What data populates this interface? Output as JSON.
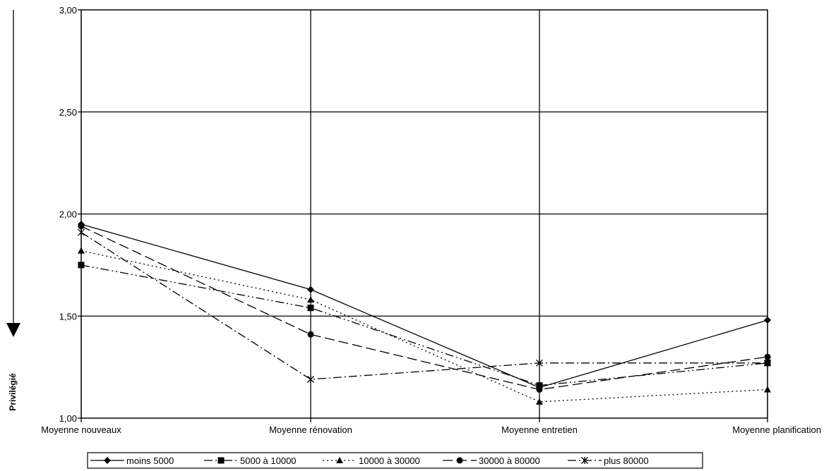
{
  "chart_data": {
    "type": "line",
    "title": "",
    "xlabel": "",
    "ylabel": "Privilégié",
    "ylim": [
      1.0,
      3.0
    ],
    "yticks": [
      "1,00",
      "1,50",
      "2,00",
      "2,50",
      "3,00"
    ],
    "yticks_values": [
      1.0,
      1.5,
      2.0,
      2.5,
      3.0
    ],
    "categories": [
      "Moyenne nouveaux",
      "Moyenne rénovation",
      "Moyenne entretien",
      "Moyenne planification"
    ],
    "grid": true,
    "legend_position": "bottom",
    "series": [
      {
        "name": "moins 5000",
        "marker": "diamond",
        "dash": "solid",
        "values": [
          1.95,
          1.63,
          1.15,
          1.48
        ]
      },
      {
        "name": "5000 à 10000",
        "marker": "square",
        "dash": "dashdotdot",
        "values": [
          1.75,
          1.54,
          1.16,
          1.27
        ]
      },
      {
        "name": "10000 à 30000",
        "marker": "triangle",
        "dash": "dotted",
        "values": [
          1.82,
          1.58,
          1.08,
          1.14
        ]
      },
      {
        "name": "30000 à 80000",
        "marker": "circle",
        "dash": "dashed",
        "values": [
          1.94,
          1.41,
          1.14,
          1.3
        ]
      },
      {
        "name": "plus 80000",
        "marker": "cross",
        "dash": "dashdot",
        "values": [
          1.91,
          1.19,
          1.27,
          1.27
        ]
      }
    ]
  }
}
